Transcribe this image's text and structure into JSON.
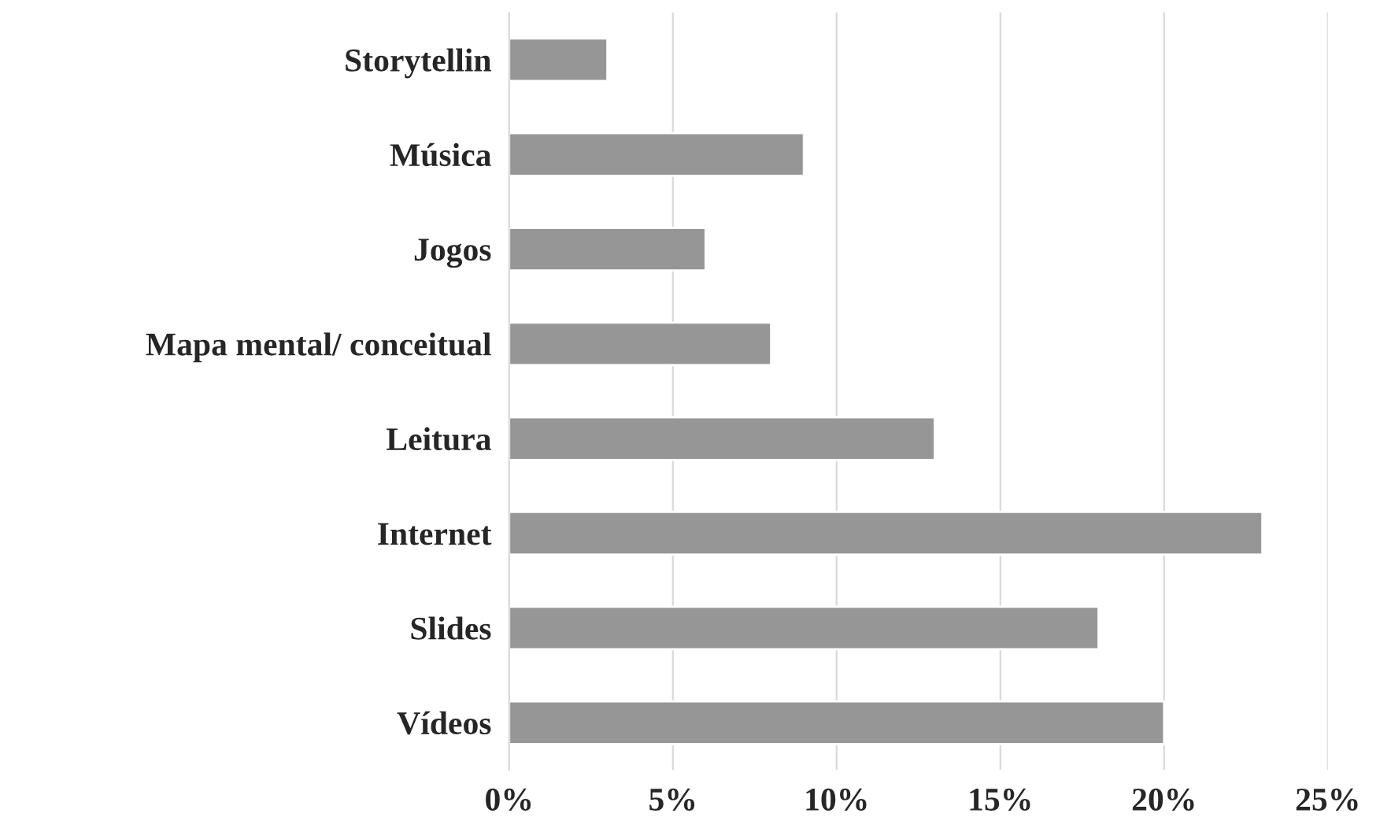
{
  "chart_data": {
    "type": "bar",
    "orientation": "horizontal",
    "categories": [
      "Storytellin",
      "Música",
      "Jogos",
      "Mapa mental/ conceitual",
      "Leitura",
      "Internet",
      "Slides",
      "Vídeos"
    ],
    "values": [
      3,
      9,
      6,
      8,
      13,
      23,
      18,
      20
    ],
    "color": "#969696",
    "xlim": [
      0,
      25
    ],
    "xticks": [
      {
        "value": 0,
        "label": "0%"
      },
      {
        "value": 5,
        "label": "5%"
      },
      {
        "value": 10,
        "label": "10%"
      },
      {
        "value": 15,
        "label": "15%"
      },
      {
        "value": 20,
        "label": "20%"
      },
      {
        "value": 25,
        "label": "25%"
      }
    ],
    "grid": "x",
    "legend": false
  }
}
